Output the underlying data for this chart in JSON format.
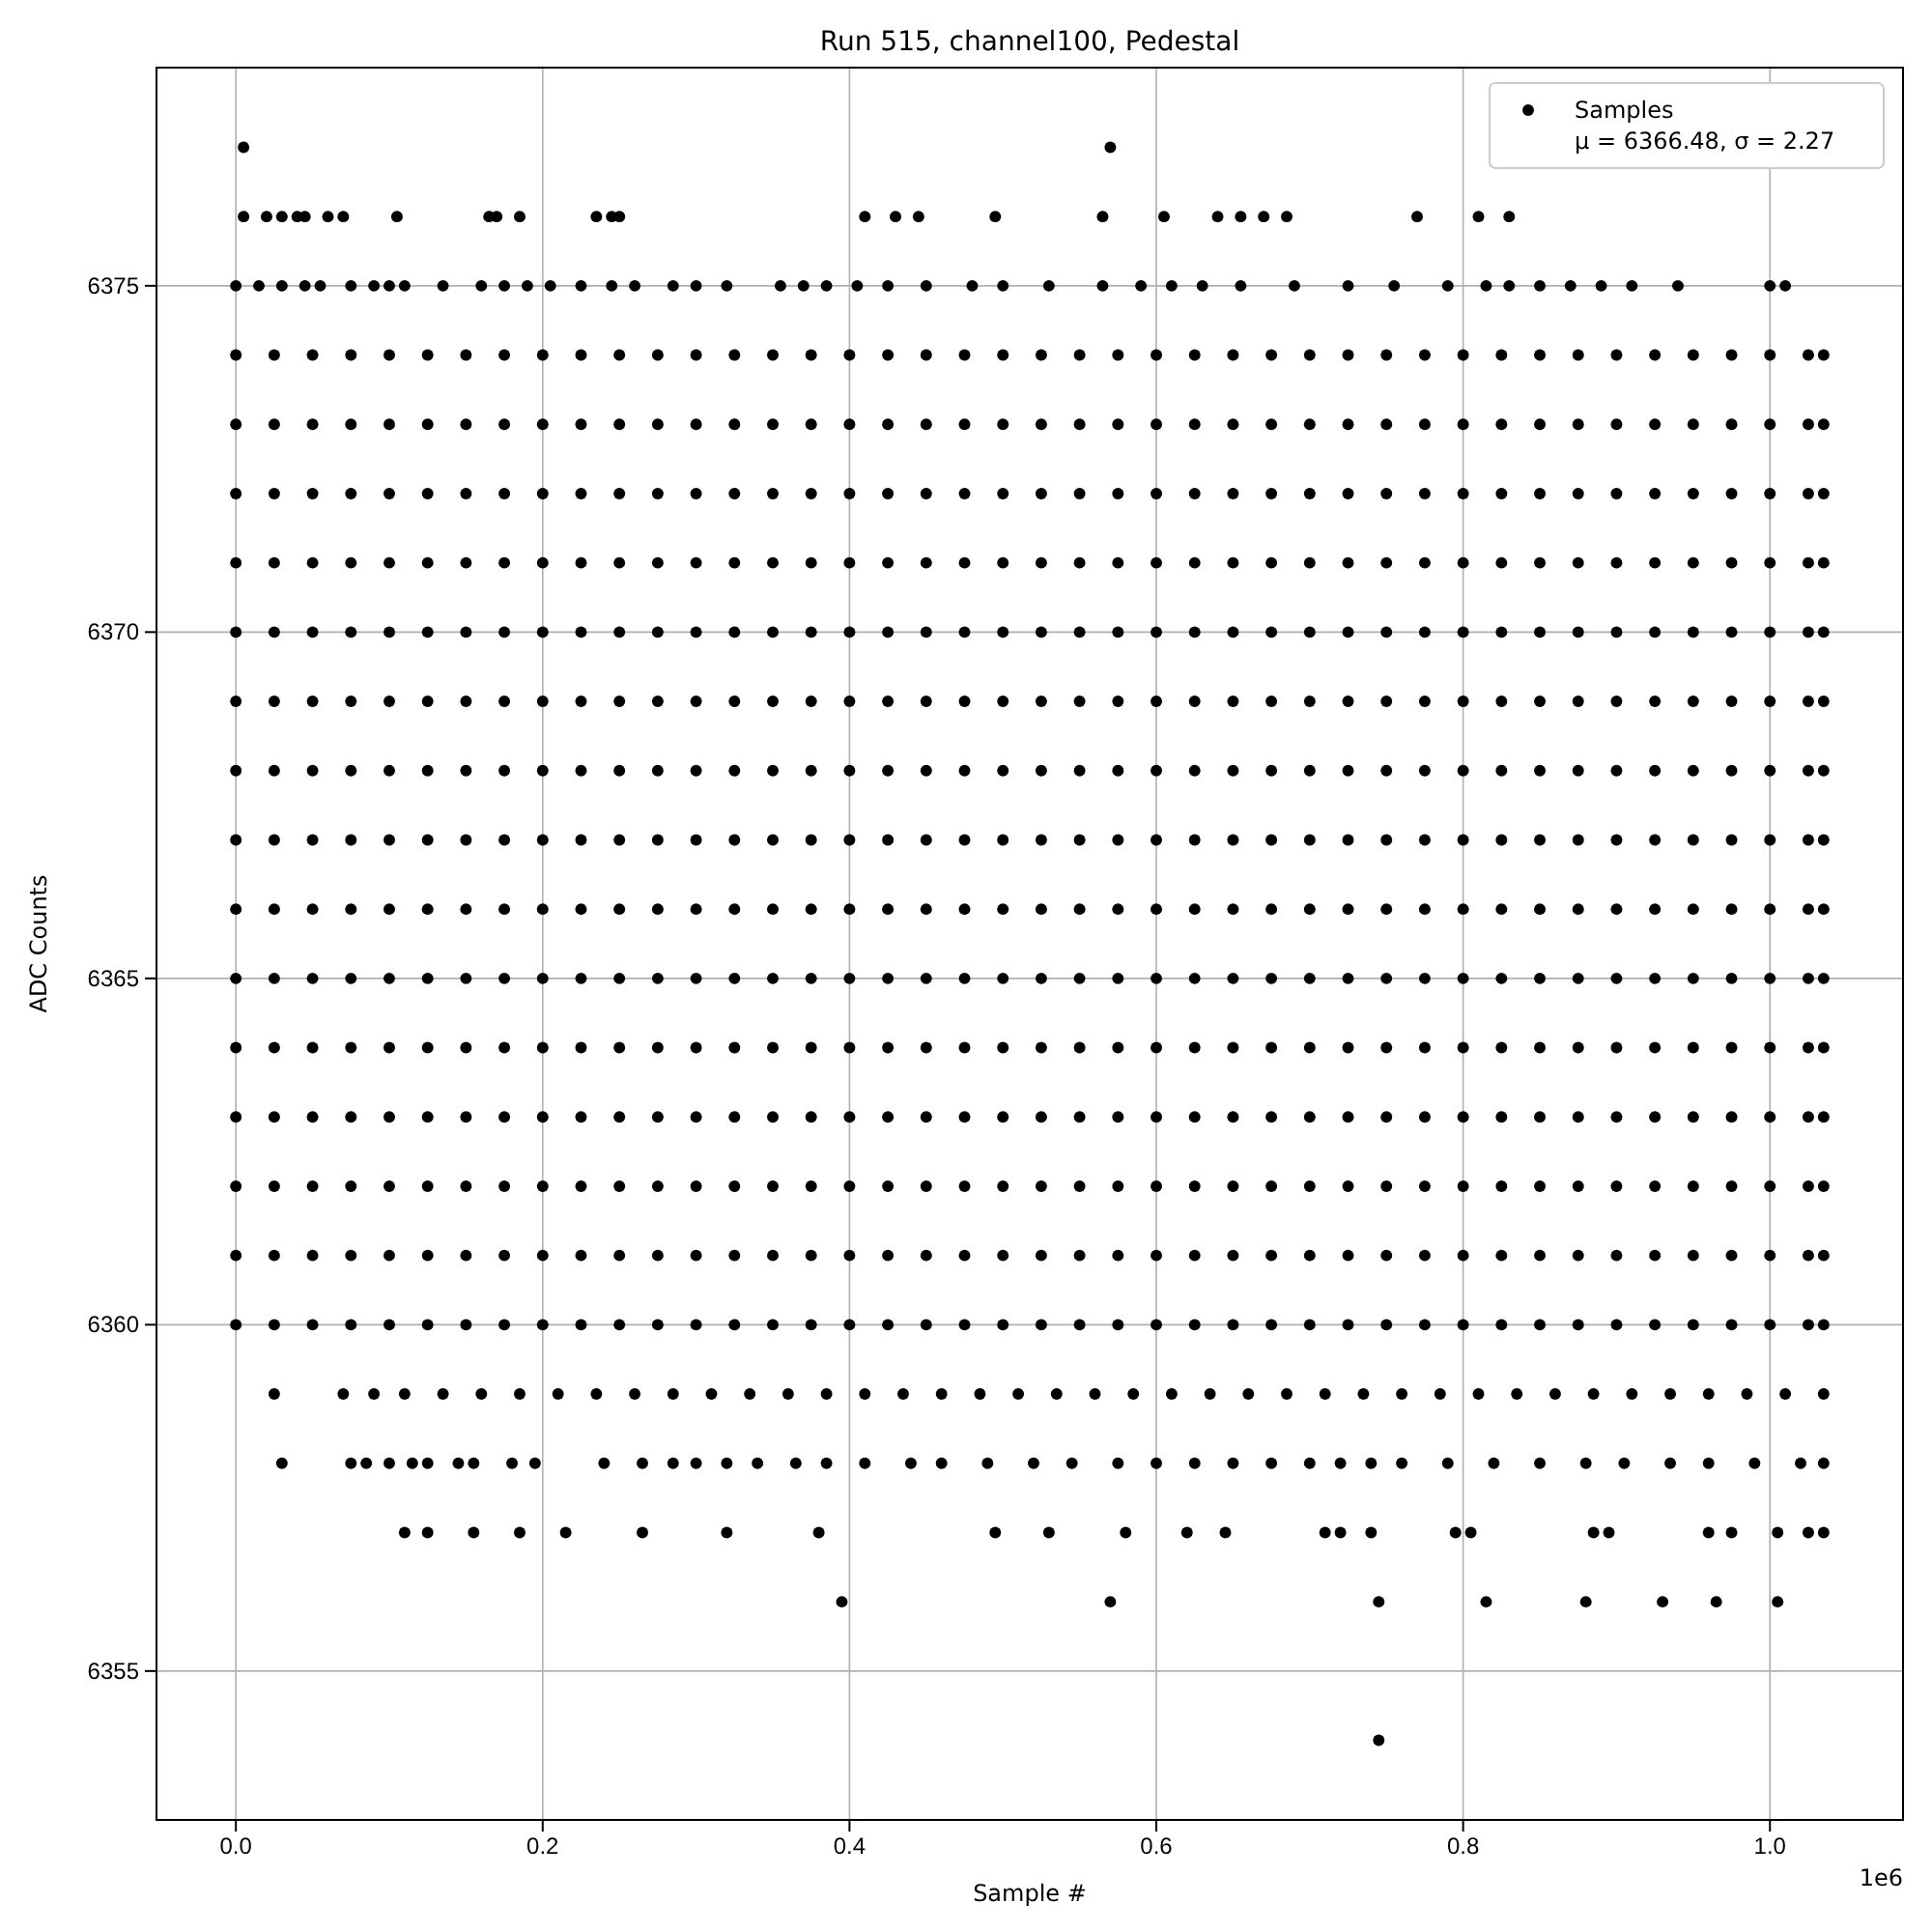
{
  "chart_data": {
    "type": "scatter",
    "title": "Run 515, channel100, Pedestal",
    "xlabel": "Sample #",
    "ylabel": "ADC Counts",
    "annotations": [
      "1e6"
    ],
    "xlim": [
      -0.05175,
      1.08675
    ],
    "ylim": [
      6352.85,
      6378.15
    ],
    "xticks": [
      {
        "value": 0,
        "label": "0.0"
      },
      0.2,
      0.4,
      0.6,
      0.8,
      {
        "value": 1,
        "label": "1.0"
      }
    ],
    "yticks": [
      6355,
      6360,
      6365,
      6370,
      6375
    ],
    "grid": true,
    "legend": "top right",
    "marker": "circle",
    "x": [
      0,
      0.025,
      0.05,
      0.075,
      0.1,
      0.125,
      0.15,
      0.175,
      0.2,
      0.225,
      0.25,
      0.275,
      0.3,
      0.325,
      0.35,
      0.375,
      0.4,
      0.425,
      0.45,
      0.475,
      0.5,
      0.525,
      0.55,
      0.575,
      0.6,
      0.625,
      0.65,
      0.675,
      0.7,
      0.725,
      0.75,
      0.775,
      0.8,
      0.825,
      0.85,
      0.875,
      0.9,
      0.925,
      0.95,
      0.975,
      1,
      1.025,
      1.035
    ],
    "series": [
      {
        "name": "Samples\nμ = 6366.48, σ = 2.27",
        "color": "#000000",
        "values": [
          6374,
          6374,
          6374,
          6374,
          6374,
          6374,
          6374,
          6374,
          6374,
          6374,
          6374,
          6374,
          6374,
          6374,
          6374,
          6374,
          6374,
          6374,
          6374,
          6374,
          6374,
          6374,
          6374,
          6374,
          6374,
          6374,
          6374,
          6374,
          6374,
          6374,
          6374,
          6374,
          6374,
          6374,
          6374,
          6374,
          6374,
          6374,
          6374,
          6374,
          6374,
          6374,
          6374
        ]
      },
      {
        "color": "#000000",
        "values": [
          6373,
          6373,
          6373,
          6373,
          6373,
          6373,
          6373,
          6373,
          6373,
          6373,
          6373,
          6373,
          6373,
          6373,
          6373,
          6373,
          6373,
          6373,
          6373,
          6373,
          6373,
          6373,
          6373,
          6373,
          6373,
          6373,
          6373,
          6373,
          6373,
          6373,
          6373,
          6373,
          6373,
          6373,
          6373,
          6373,
          6373,
          6373,
          6373,
          6373,
          6373,
          6373,
          6373
        ]
      },
      {
        "color": "#000000",
        "values": [
          6372,
          6372,
          6372,
          6372,
          6372,
          6372,
          6372,
          6372,
          6372,
          6372,
          6372,
          6372,
          6372,
          6372,
          6372,
          6372,
          6372,
          6372,
          6372,
          6372,
          6372,
          6372,
          6372,
          6372,
          6372,
          6372,
          6372,
          6372,
          6372,
          6372,
          6372,
          6372,
          6372,
          6372,
          6372,
          6372,
          6372,
          6372,
          6372,
          6372,
          6372,
          6372,
          6372
        ]
      },
      {
        "color": "#000000",
        "values": [
          6371,
          6371,
          6371,
          6371,
          6371,
          6371,
          6371,
          6371,
          6371,
          6371,
          6371,
          6371,
          6371,
          6371,
          6371,
          6371,
          6371,
          6371,
          6371,
          6371,
          6371,
          6371,
          6371,
          6371,
          6371,
          6371,
          6371,
          6371,
          6371,
          6371,
          6371,
          6371,
          6371,
          6371,
          6371,
          6371,
          6371,
          6371,
          6371,
          6371,
          6371,
          6371,
          6371
        ]
      },
      {
        "color": "#000000",
        "values": [
          6370,
          6370,
          6370,
          6370,
          6370,
          6370,
          6370,
          6370,
          6370,
          6370,
          6370,
          6370,
          6370,
          6370,
          6370,
          6370,
          6370,
          6370,
          6370,
          6370,
          6370,
          6370,
          6370,
          6370,
          6370,
          6370,
          6370,
          6370,
          6370,
          6370,
          6370,
          6370,
          6370,
          6370,
          6370,
          6370,
          6370,
          6370,
          6370,
          6370,
          6370,
          6370,
          6370
        ]
      },
      {
        "color": "#000000",
        "values": [
          6369,
          6369,
          6369,
          6369,
          6369,
          6369,
          6369,
          6369,
          6369,
          6369,
          6369,
          6369,
          6369,
          6369,
          6369,
          6369,
          6369,
          6369,
          6369,
          6369,
          6369,
          6369,
          6369,
          6369,
          6369,
          6369,
          6369,
          6369,
          6369,
          6369,
          6369,
          6369,
          6369,
          6369,
          6369,
          6369,
          6369,
          6369,
          6369,
          6369,
          6369,
          6369,
          6369
        ]
      },
      {
        "color": "#000000",
        "values": [
          6368,
          6368,
          6368,
          6368,
          6368,
          6368,
          6368,
          6368,
          6368,
          6368,
          6368,
          6368,
          6368,
          6368,
          6368,
          6368,
          6368,
          6368,
          6368,
          6368,
          6368,
          6368,
          6368,
          6368,
          6368,
          6368,
          6368,
          6368,
          6368,
          6368,
          6368,
          6368,
          6368,
          6368,
          6368,
          6368,
          6368,
          6368,
          6368,
          6368,
          6368,
          6368,
          6368
        ]
      },
      {
        "color": "#000000",
        "values": [
          6367,
          6367,
          6367,
          6367,
          6367,
          6367,
          6367,
          6367,
          6367,
          6367,
          6367,
          6367,
          6367,
          6367,
          6367,
          6367,
          6367,
          6367,
          6367,
          6367,
          6367,
          6367,
          6367,
          6367,
          6367,
          6367,
          6367,
          6367,
          6367,
          6367,
          6367,
          6367,
          6367,
          6367,
          6367,
          6367,
          6367,
          6367,
          6367,
          6367,
          6367,
          6367,
          6367
        ]
      },
      {
        "color": "#000000",
        "values": [
          6366,
          6366,
          6366,
          6366,
          6366,
          6366,
          6366,
          6366,
          6366,
          6366,
          6366,
          6366,
          6366,
          6366,
          6366,
          6366,
          6366,
          6366,
          6366,
          6366,
          6366,
          6366,
          6366,
          6366,
          6366,
          6366,
          6366,
          6366,
          6366,
          6366,
          6366,
          6366,
          6366,
          6366,
          6366,
          6366,
          6366,
          6366,
          6366,
          6366,
          6366,
          6366,
          6366
        ]
      },
      {
        "color": "#000000",
        "values": [
          6365,
          6365,
          6365,
          6365,
          6365,
          6365,
          6365,
          6365,
          6365,
          6365,
          6365,
          6365,
          6365,
          6365,
          6365,
          6365,
          6365,
          6365,
          6365,
          6365,
          6365,
          6365,
          6365,
          6365,
          6365,
          6365,
          6365,
          6365,
          6365,
          6365,
          6365,
          6365,
          6365,
          6365,
          6365,
          6365,
          6365,
          6365,
          6365,
          6365,
          6365,
          6365,
          6365
        ]
      },
      {
        "color": "#000000",
        "values": [
          6364,
          6364,
          6364,
          6364,
          6364,
          6364,
          6364,
          6364,
          6364,
          6364,
          6364,
          6364,
          6364,
          6364,
          6364,
          6364,
          6364,
          6364,
          6364,
          6364,
          6364,
          6364,
          6364,
          6364,
          6364,
          6364,
          6364,
          6364,
          6364,
          6364,
          6364,
          6364,
          6364,
          6364,
          6364,
          6364,
          6364,
          6364,
          6364,
          6364,
          6364,
          6364,
          6364
        ]
      },
      {
        "color": "#000000",
        "values": [
          6363,
          6363,
          6363,
          6363,
          6363,
          6363,
          6363,
          6363,
          6363,
          6363,
          6363,
          6363,
          6363,
          6363,
          6363,
          6363,
          6363,
          6363,
          6363,
          6363,
          6363,
          6363,
          6363,
          6363,
          6363,
          6363,
          6363,
          6363,
          6363,
          6363,
          6363,
          6363,
          6363,
          6363,
          6363,
          6363,
          6363,
          6363,
          6363,
          6363,
          6363,
          6363,
          6363
        ]
      },
      {
        "color": "#000000",
        "values": [
          6362,
          6362,
          6362,
          6362,
          6362,
          6362,
          6362,
          6362,
          6362,
          6362,
          6362,
          6362,
          6362,
          6362,
          6362,
          6362,
          6362,
          6362,
          6362,
          6362,
          6362,
          6362,
          6362,
          6362,
          6362,
          6362,
          6362,
          6362,
          6362,
          6362,
          6362,
          6362,
          6362,
          6362,
          6362,
          6362,
          6362,
          6362,
          6362,
          6362,
          6362,
          6362,
          6362
        ]
      },
      {
        "color": "#000000",
        "values": [
          6361,
          6361,
          6361,
          6361,
          6361,
          6361,
          6361,
          6361,
          6361,
          6361,
          6361,
          6361,
          6361,
          6361,
          6361,
          6361,
          6361,
          6361,
          6361,
          6361,
          6361,
          6361,
          6361,
          6361,
          6361,
          6361,
          6361,
          6361,
          6361,
          6361,
          6361,
          6361,
          6361,
          6361,
          6361,
          6361,
          6361,
          6361,
          6361,
          6361,
          6361,
          6361,
          6361
        ]
      },
      {
        "color": "#000000",
        "values": [
          6360,
          6360,
          6360,
          6360,
          6360,
          6360,
          6360,
          6360,
          6360,
          6360,
          6360,
          6360,
          6360,
          6360,
          6360,
          6360,
          6360,
          6360,
          6360,
          6360,
          6360,
          6360,
          6360,
          6360,
          6360,
          6360,
          6360,
          6360,
          6360,
          6360,
          6360,
          6360,
          6360,
          6360,
          6360,
          6360,
          6360,
          6360,
          6360,
          6360,
          6360,
          6360,
          6360
        ]
      },
      {
        "color": "#000000",
        "x": [
          0.005,
          0.57
        ],
        "values": [
          6377,
          6377
        ]
      },
      {
        "color": "#000000",
        "x": [
          0.005,
          0.02,
          0.03,
          0.04,
          0.045,
          0.06,
          0.07,
          0.105,
          0.165,
          0.17,
          0.185,
          0.235,
          0.245,
          0.25,
          0.41,
          0.43,
          0.445,
          0.495,
          0.565,
          0.605,
          0.64,
          0.655,
          0.67,
          0.685,
          0.77,
          0.81,
          0.83
        ],
        "values": [
          6376,
          6376,
          6376,
          6376,
          6376,
          6376,
          6376,
          6376,
          6376,
          6376,
          6376,
          6376,
          6376,
          6376,
          6376,
          6376,
          6376,
          6376,
          6376,
          6376,
          6376,
          6376,
          6376,
          6376,
          6376,
          6376,
          6376
        ]
      },
      {
        "color": "#000000",
        "x": [
          0,
          0.015,
          0.03,
          0.045,
          0.055,
          0.075,
          0.09,
          0.1,
          0.11,
          0.135,
          0.16,
          0.175,
          0.19,
          0.205,
          0.225,
          0.245,
          0.26,
          0.285,
          0.3,
          0.32,
          0.355,
          0.37,
          0.385,
          0.405,
          0.425,
          0.45,
          0.48,
          0.5,
          0.53,
          0.565,
          0.59,
          0.61,
          0.63,
          0.655,
          0.69,
          0.725,
          0.755,
          0.79,
          0.815,
          0.83,
          0.85,
          0.87,
          0.89,
          0.91,
          0.94,
          1,
          1.01
        ],
        "values": [
          6375,
          6375,
          6375,
          6375,
          6375,
          6375,
          6375,
          6375,
          6375,
          6375,
          6375,
          6375,
          6375,
          6375,
          6375,
          6375,
          6375,
          6375,
          6375,
          6375,
          6375,
          6375,
          6375,
          6375,
          6375,
          6375,
          6375,
          6375,
          6375,
          6375,
          6375,
          6375,
          6375,
          6375,
          6375,
          6375,
          6375,
          6375,
          6375,
          6375,
          6375,
          6375,
          6375,
          6375,
          6375,
          6375,
          6375
        ]
      },
      {
        "color": "#000000",
        "x": [
          0.025,
          0.07,
          0.09,
          0.11,
          0.135,
          0.16,
          0.185,
          0.21,
          0.235,
          0.26,
          0.285,
          0.31,
          0.335,
          0.36,
          0.385,
          0.41,
          0.435,
          0.46,
          0.485,
          0.51,
          0.535,
          0.56,
          0.585,
          0.61,
          0.635,
          0.66,
          0.685,
          0.71,
          0.735,
          0.76,
          0.785,
          0.81,
          0.835,
          0.86,
          0.885,
          0.91,
          0.935,
          0.96,
          0.985,
          1.01,
          1.035
        ],
        "values": [
          6359,
          6359,
          6359,
          6359,
          6359,
          6359,
          6359,
          6359,
          6359,
          6359,
          6359,
          6359,
          6359,
          6359,
          6359,
          6359,
          6359,
          6359,
          6359,
          6359,
          6359,
          6359,
          6359,
          6359,
          6359,
          6359,
          6359,
          6359,
          6359,
          6359,
          6359,
          6359,
          6359,
          6359,
          6359,
          6359,
          6359,
          6359,
          6359,
          6359,
          6359
        ]
      },
      {
        "color": "#000000",
        "x": [
          0.03,
          0.075,
          0.085,
          0.1,
          0.115,
          0.125,
          0.145,
          0.155,
          0.18,
          0.195,
          0.24,
          0.265,
          0.285,
          0.3,
          0.32,
          0.34,
          0.365,
          0.385,
          0.41,
          0.44,
          0.46,
          0.49,
          0.52,
          0.545,
          0.575,
          0.6,
          0.625,
          0.65,
          0.675,
          0.7,
          0.72,
          0.74,
          0.76,
          0.79,
          0.82,
          0.85,
          0.88,
          0.905,
          0.935,
          0.96,
          0.99,
          1.02,
          1.035
        ],
        "values": [
          6358,
          6358,
          6358,
          6358,
          6358,
          6358,
          6358,
          6358,
          6358,
          6358,
          6358,
          6358,
          6358,
          6358,
          6358,
          6358,
          6358,
          6358,
          6358,
          6358,
          6358,
          6358,
          6358,
          6358,
          6358,
          6358,
          6358,
          6358,
          6358,
          6358,
          6358,
          6358,
          6358,
          6358,
          6358,
          6358,
          6358,
          6358,
          6358,
          6358,
          6358,
          6358,
          6358
        ]
      },
      {
        "color": "#000000",
        "x": [
          0.11,
          0.125,
          0.155,
          0.185,
          0.215,
          0.265,
          0.32,
          0.38,
          0.495,
          0.53,
          0.58,
          0.62,
          0.645,
          0.71,
          0.72,
          0.74,
          0.795,
          0.805,
          0.885,
          0.895,
          0.96,
          0.975,
          1.005,
          1.025,
          1.035
        ],
        "values": [
          6357,
          6357,
          6357,
          6357,
          6357,
          6357,
          6357,
          6357,
          6357,
          6357,
          6357,
          6357,
          6357,
          6357,
          6357,
          6357,
          6357,
          6357,
          6357,
          6357,
          6357,
          6357,
          6357,
          6357,
          6357
        ]
      },
      {
        "color": "#000000",
        "x": [
          0.395,
          0.57,
          0.745,
          0.815,
          0.88,
          0.93,
          0.965,
          1.005
        ],
        "values": [
          6356,
          6356,
          6356,
          6356,
          6356,
          6356,
          6356,
          6356
        ]
      },
      {
        "color": "#000000",
        "x": [
          0.745
        ],
        "values": [
          6354
        ]
      }
    ]
  }
}
